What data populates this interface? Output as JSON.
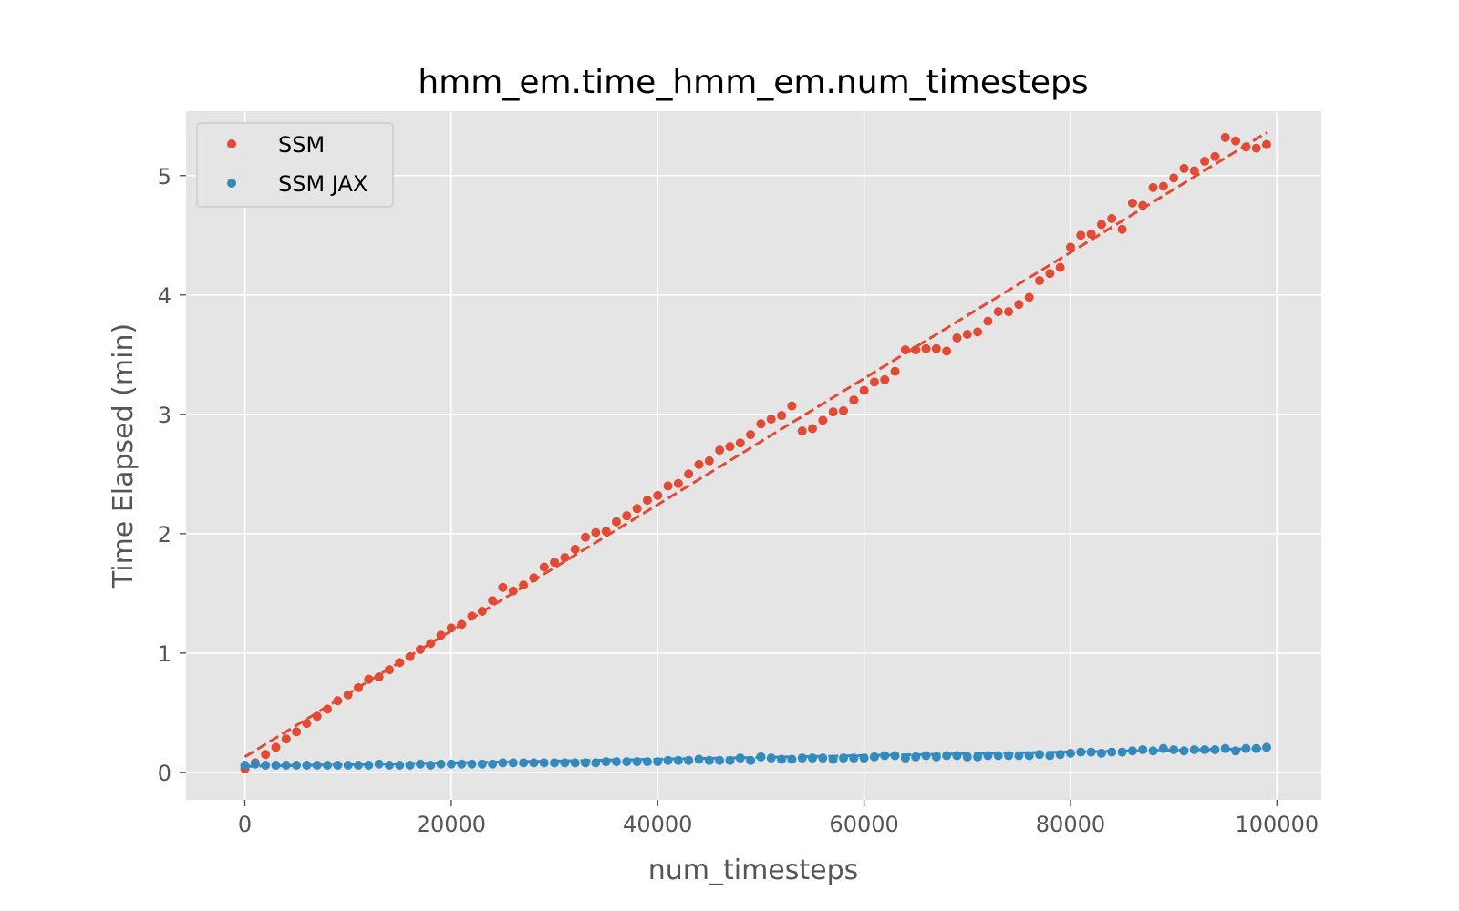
{
  "chart_data": {
    "type": "scatter",
    "title": "hmm_em.time_hmm_em.num_timesteps",
    "xlabel": "num_timesteps",
    "ylabel": "Time Elapsed (min)",
    "xlim": [
      -5700,
      104300
    ],
    "ylim": [
      -0.23,
      5.54
    ],
    "xticks": [
      0,
      20000,
      40000,
      60000,
      80000,
      100000
    ],
    "xtick_labels": [
      "0",
      "20000",
      "40000",
      "60000",
      "80000",
      "100000"
    ],
    "yticks": [
      0,
      1,
      2,
      3,
      4,
      5
    ],
    "ytick_labels": [
      "0",
      "1",
      "2",
      "3",
      "4",
      "5"
    ],
    "grid": true,
    "legend_position": "top-left",
    "background": "#e5e5e5",
    "x": [
      0,
      1000,
      2000,
      3000,
      4000,
      5000,
      6000,
      7000,
      8000,
      9000,
      10000,
      11000,
      12000,
      13000,
      14000,
      15000,
      16000,
      17000,
      18000,
      19000,
      20000,
      21000,
      22000,
      23000,
      24000,
      25000,
      26000,
      27000,
      28000,
      29000,
      30000,
      31000,
      32000,
      33000,
      34000,
      35000,
      36000,
      37000,
      38000,
      39000,
      40000,
      41000,
      42000,
      43000,
      44000,
      45000,
      46000,
      47000,
      48000,
      49000,
      50000,
      51000,
      52000,
      53000,
      54000,
      55000,
      56000,
      57000,
      58000,
      59000,
      60000,
      61000,
      62000,
      63000,
      64000,
      65000,
      66000,
      67000,
      68000,
      69000,
      70000,
      71000,
      72000,
      73000,
      74000,
      75000,
      76000,
      77000,
      78000,
      79000,
      80000,
      81000,
      82000,
      83000,
      84000,
      85000,
      86000,
      87000,
      88000,
      89000,
      90000,
      91000,
      92000,
      93000,
      94000,
      95000,
      96000,
      97000,
      98000,
      99000
    ],
    "series": [
      {
        "name": "SSM",
        "color": "#e24a33",
        "marker": "dot",
        "values": [
          0.03,
          0.08,
          0.15,
          0.21,
          0.28,
          0.34,
          0.41,
          0.47,
          0.53,
          0.6,
          0.65,
          0.71,
          0.78,
          0.8,
          0.86,
          0.92,
          0.97,
          1.03,
          1.08,
          1.15,
          1.21,
          1.24,
          1.31,
          1.35,
          1.44,
          1.55,
          1.52,
          1.57,
          1.63,
          1.72,
          1.76,
          1.8,
          1.87,
          1.97,
          2.01,
          2.02,
          2.1,
          2.15,
          2.21,
          2.28,
          2.32,
          2.4,
          2.42,
          2.5,
          2.58,
          2.61,
          2.7,
          2.73,
          2.76,
          2.83,
          2.92,
          2.96,
          2.99,
          3.07,
          2.86,
          2.88,
          2.95,
          3.02,
          3.03,
          3.12,
          3.2,
          3.27,
          3.29,
          3.36,
          3.54,
          3.54,
          3.55,
          3.55,
          3.53,
          3.64,
          3.67,
          3.69,
          3.78,
          3.86,
          3.86,
          3.92,
          3.98,
          4.12,
          4.18,
          4.23,
          4.4,
          4.5,
          4.51,
          4.59,
          4.64,
          4.55,
          4.77,
          4.75,
          4.9,
          4.91,
          4.98,
          5.06,
          5.04,
          5.12,
          5.16,
          5.32,
          5.29,
          5.24,
          5.23,
          5.26
        ]
      },
      {
        "name": "SSM JAX",
        "color": "#348abd",
        "marker": "dot",
        "values": [
          0.06,
          0.07,
          0.06,
          0.06,
          0.06,
          0.06,
          0.06,
          0.06,
          0.06,
          0.06,
          0.06,
          0.06,
          0.06,
          0.07,
          0.06,
          0.06,
          0.06,
          0.07,
          0.06,
          0.07,
          0.07,
          0.07,
          0.07,
          0.07,
          0.07,
          0.08,
          0.08,
          0.08,
          0.08,
          0.08,
          0.08,
          0.08,
          0.08,
          0.08,
          0.08,
          0.09,
          0.09,
          0.09,
          0.09,
          0.09,
          0.09,
          0.1,
          0.1,
          0.1,
          0.11,
          0.1,
          0.1,
          0.1,
          0.12,
          0.1,
          0.13,
          0.12,
          0.11,
          0.11,
          0.12,
          0.12,
          0.12,
          0.11,
          0.12,
          0.12,
          0.12,
          0.13,
          0.14,
          0.14,
          0.12,
          0.13,
          0.14,
          0.13,
          0.14,
          0.14,
          0.13,
          0.13,
          0.14,
          0.14,
          0.14,
          0.14,
          0.14,
          0.15,
          0.14,
          0.15,
          0.16,
          0.17,
          0.17,
          0.16,
          0.17,
          0.17,
          0.18,
          0.19,
          0.18,
          0.2,
          0.19,
          0.18,
          0.19,
          0.19,
          0.19,
          0.2,
          0.18,
          0.2,
          0.2,
          0.21
        ]
      }
    ],
    "fit_lines": [
      {
        "series": "SSM",
        "color": "#e24a33",
        "style": "dashed",
        "x": [
          0,
          99000
        ],
        "y": [
          0.13,
          5.36
        ]
      },
      {
        "series": "SSM JAX",
        "color": "#348abd",
        "style": "dashed",
        "x": [
          0,
          99000
        ],
        "y": [
          0.05,
          0.2
        ]
      }
    ]
  }
}
